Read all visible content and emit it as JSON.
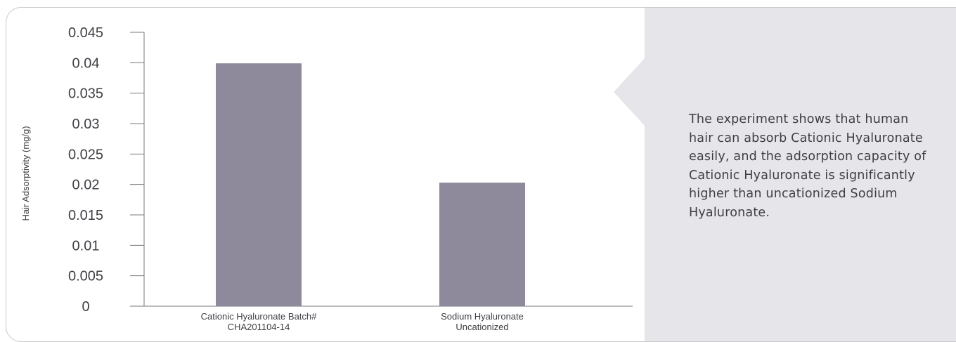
{
  "chart_data": {
    "type": "bar",
    "categories": [
      [
        "Cationic Hyaluronate Batch#",
        "CHA201104-14"
      ],
      [
        "Sodium Hyaluronate",
        "Uncationized"
      ]
    ],
    "values": [
      0.0399,
      0.0203
    ],
    "yticks": [
      "0",
      "0.005",
      "0.01",
      "0.015",
      "0.02",
      "0.025",
      "0.03",
      "0.035",
      "0.04",
      "0.045"
    ],
    "ylim": [
      0,
      0.045
    ],
    "ylabel": "Hair Adsorptivity (mg/g)",
    "xlabel": "",
    "title": "",
    "bar_color": "#8e8a9c",
    "axis_color": "#7a7a80",
    "grid": false
  },
  "panel": {
    "text": "The experiment shows that human hair can absorb Cationic Hyaluronate easily, and the adsorption capacity of Cationic Hyaluronate is significantly higher than uncationized Sodium Hyaluronate."
  }
}
